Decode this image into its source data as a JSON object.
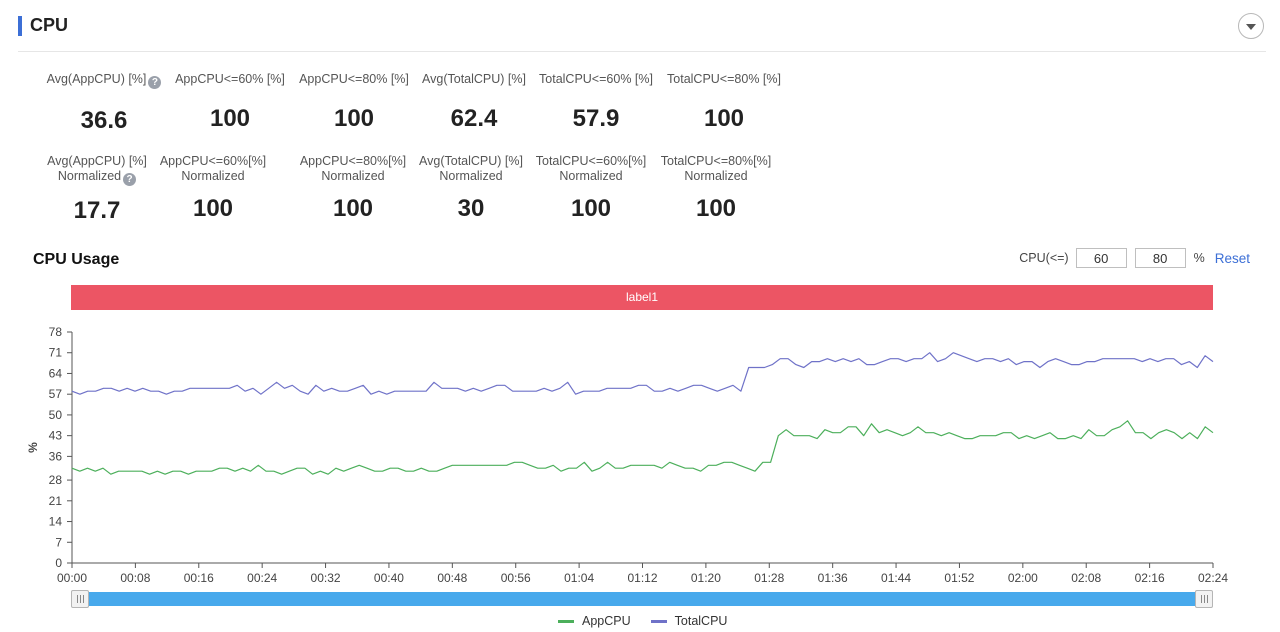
{
  "section": {
    "title": "CPU"
  },
  "metrics_row1": [
    {
      "label": "Avg(AppCPU) [%]",
      "value": "36.6",
      "help": true
    },
    {
      "label": "AppCPU<=60% [%]",
      "value": "100"
    },
    {
      "label": "AppCPU<=80% [%]",
      "value": "100"
    },
    {
      "label": "Avg(TotalCPU) [%]",
      "value": "62.4"
    },
    {
      "label": "TotalCPU<=60% [%]",
      "value": "57.9"
    },
    {
      "label": "TotalCPU<=80% [%]",
      "value": "100"
    }
  ],
  "metrics_row2": [
    {
      "label": "Avg(AppCPU) [%]",
      "sub": "Normalized",
      "value": "17.7",
      "help": true
    },
    {
      "label": "AppCPU<=60%[%]",
      "sub": "Normalized",
      "value": "100"
    },
    {
      "label": "AppCPU<=80%[%]",
      "sub": "Normalized",
      "value": "100"
    },
    {
      "label": "Avg(TotalCPU) [%]",
      "sub": "Normalized",
      "value": "30"
    },
    {
      "label": "TotalCPU<=60%[%]",
      "sub": "Normalized",
      "value": "100"
    },
    {
      "label": "TotalCPU<=80%[%]",
      "sub": "Normalized",
      "value": "100"
    }
  ],
  "help_glyph": "?",
  "usage": {
    "title": "CPU Usage",
    "threshold_label": "CPU(<=)",
    "threshold_low": "60",
    "threshold_high": "80",
    "threshold_unit": "%",
    "reset_label": "Reset",
    "band_label": "label1"
  },
  "colors": {
    "accent": "#3c6fd6",
    "band": "#ec5564",
    "app_cpu": "#4caf5b",
    "total_cpu": "#6f72c8",
    "slider": "#47a9ec"
  },
  "icons": {
    "collapse": "chevron-down-icon",
    "help": "question-circle-icon"
  },
  "chart_data": {
    "type": "line",
    "ylabel": "%",
    "ylim": [
      0,
      78
    ],
    "yticks": [
      0,
      7,
      14,
      21,
      28,
      36,
      43,
      50,
      57,
      64,
      71,
      78
    ],
    "xlim": [
      0,
      144
    ],
    "x_tick_labels": [
      "00:00",
      "00:08",
      "00:16",
      "00:24",
      "00:32",
      "00:40",
      "00:48",
      "00:56",
      "01:04",
      "01:12",
      "01:20",
      "01:28",
      "01:36",
      "01:44",
      "01:52",
      "02:00",
      "02:08",
      "02:16",
      "02:24"
    ],
    "x_tick_minutes": [
      0,
      8,
      16,
      24,
      32,
      40,
      48,
      56,
      64,
      72,
      80,
      88,
      96,
      104,
      112,
      120,
      128,
      136,
      144
    ],
    "x_unit": "minutes",
    "legend_position": "bottom",
    "grid": false,
    "series": [
      {
        "name": "AppCPU",
        "values": [
          32,
          31,
          32,
          31,
          32,
          30,
          31,
          31,
          31,
          31,
          30,
          31,
          30,
          31,
          31,
          30,
          31,
          31,
          31,
          32,
          32,
          31,
          32,
          31,
          33,
          31,
          31,
          30,
          31,
          32,
          32,
          30,
          31,
          30,
          32,
          31,
          32,
          33,
          32,
          31,
          31,
          32,
          32,
          31,
          31,
          32,
          31,
          31,
          32,
          33,
          33,
          33,
          33,
          33,
          33,
          33,
          33,
          34,
          34,
          33,
          32,
          32,
          33,
          31,
          32,
          32,
          34,
          31,
          32,
          34,
          32,
          32,
          33,
          33,
          33,
          33,
          32,
          34,
          33,
          32,
          32,
          31,
          33,
          33,
          34,
          34,
          33,
          32,
          31,
          34,
          34,
          43,
          45,
          43,
          43,
          43,
          42,
          45,
          44,
          44,
          46,
          46,
          43,
          47,
          44,
          45,
          44,
          43,
          44,
          46,
          44,
          44,
          43,
          44,
          43,
          42,
          42,
          43,
          43,
          43,
          44,
          44,
          42,
          43,
          42,
          43,
          44,
          42,
          42,
          43,
          42,
          45,
          43,
          43,
          45,
          46,
          48,
          44,
          44,
          42,
          44,
          45,
          44,
          42,
          44,
          42,
          46,
          44
        ]
      },
      {
        "name": "TotalCPU",
        "values": [
          58,
          57,
          58,
          58,
          59,
          59,
          58,
          59,
          58,
          59,
          58,
          58,
          57,
          58,
          58,
          59,
          59,
          59,
          59,
          59,
          59,
          60,
          58,
          59,
          57,
          59,
          61,
          59,
          60,
          58,
          57,
          60,
          58,
          59,
          58,
          58,
          59,
          60,
          57,
          58,
          57,
          58,
          58,
          58,
          58,
          58,
          61,
          59,
          59,
          59,
          58,
          59,
          58,
          59,
          60,
          60,
          58,
          58,
          58,
          58,
          59,
          58,
          59,
          61,
          57,
          58,
          58,
          58,
          59,
          59,
          59,
          59,
          60,
          60,
          58,
          58,
          59,
          58,
          59,
          60,
          60,
          59,
          58,
          59,
          60,
          58,
          66,
          66,
          66,
          67,
          69,
          69,
          67,
          66,
          68,
          68,
          69,
          68,
          69,
          68,
          69,
          67,
          67,
          68,
          69,
          69,
          68,
          69,
          69,
          71,
          68,
          69,
          71,
          70,
          69,
          68,
          69,
          69,
          68,
          69,
          67,
          68,
          68,
          66,
          68,
          69,
          68,
          67,
          67,
          68,
          68,
          69,
          69,
          69,
          69,
          69,
          68,
          69,
          68,
          69,
          69,
          67,
          68,
          66,
          70,
          68
        ]
      }
    ]
  }
}
